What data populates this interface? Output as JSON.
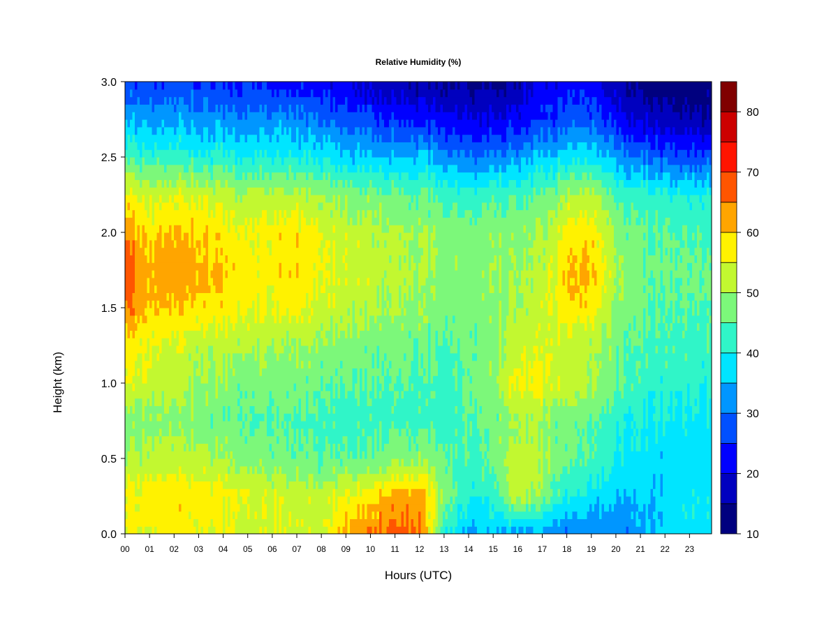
{
  "chart_data": {
    "type": "heatmap",
    "title": "Relative Humidity (%)",
    "xlabel": "Hours (UTC)",
    "ylabel": "Height (km)",
    "x_tick_labels": [
      "00",
      "01",
      "02",
      "03",
      "04",
      "05",
      "06",
      "07",
      "08",
      "09",
      "10",
      "11",
      "12",
      "13",
      "14",
      "15",
      "16",
      "17",
      "18",
      "19",
      "20",
      "21",
      "22",
      "23"
    ],
    "x_ticks": [
      0,
      1,
      2,
      3,
      4,
      5,
      6,
      7,
      8,
      9,
      10,
      11,
      12,
      13,
      14,
      15,
      16,
      17,
      18,
      19,
      20,
      21,
      22,
      23
    ],
    "xlim": [
      0,
      23.9
    ],
    "y_tick_labels": [
      "0.0",
      "0.5",
      "1.0",
      "1.5",
      "2.0",
      "2.5",
      "3.0"
    ],
    "y_ticks": [
      0,
      0.5,
      1.0,
      1.5,
      2.0,
      2.5,
      3.0
    ],
    "ylim": [
      0,
      3.0
    ],
    "colorbar": {
      "levels": [
        10,
        15,
        20,
        25,
        30,
        35,
        40,
        45,
        50,
        55,
        60,
        65,
        70,
        75,
        80,
        85
      ],
      "colors": [
        "#00007F",
        "#0000BF",
        "#0000FF",
        "#0050FF",
        "#0096FF",
        "#00E5FF",
        "#30F5C8",
        "#7CF87A",
        "#C2F830",
        "#FFF200",
        "#FFA500",
        "#FF5500",
        "#FF1400",
        "#CC0000",
        "#800000"
      ],
      "tick_labels": [
        "10",
        "20",
        "30",
        "40",
        "50",
        "60",
        "70",
        "80"
      ],
      "ticks": [
        10,
        20,
        30,
        40,
        50,
        60,
        70,
        80
      ]
    },
    "grid": false,
    "legend": "colorbar-right",
    "x": [
      0,
      1,
      2,
      3,
      4,
      5,
      6,
      7,
      8,
      9,
      10,
      11,
      12,
      13,
      14,
      15,
      16,
      17,
      18,
      19,
      20,
      21,
      22,
      23
    ],
    "y": [
      0.0,
      0.25,
      0.5,
      0.75,
      1.0,
      1.25,
      1.5,
      1.75,
      2.0,
      2.25,
      2.5,
      2.75,
      3.0
    ],
    "z": [
      [
        55,
        55,
        56,
        56,
        56,
        54,
        54,
        54,
        53,
        62,
        65,
        67,
        66,
        42,
        34,
        35,
        33,
        32,
        30,
        30,
        31,
        33,
        37,
        38
      ],
      [
        56,
        58,
        58,
        58,
        57,
        55,
        54,
        53,
        52,
        56,
        58,
        62,
        63,
        50,
        40,
        42,
        53,
        48,
        40,
        38,
        36,
        36,
        37,
        38
      ],
      [
        50,
        52,
        52,
        52,
        50,
        48,
        47,
        46,
        45,
        45,
        46,
        48,
        49,
        46,
        44,
        46,
        54,
        50,
        46,
        44,
        40,
        38,
        37,
        37
      ],
      [
        47,
        48,
        48,
        47,
        46,
        45,
        45,
        44,
        44,
        43,
        43,
        43,
        43,
        43,
        44,
        46,
        50,
        49,
        46,
        45,
        42,
        40,
        39,
        38
      ],
      [
        56,
        53,
        52,
        50,
        48,
        47,
        47,
        47,
        46,
        45,
        45,
        45,
        44,
        44,
        46,
        48,
        57,
        56,
        53,
        51,
        46,
        43,
        42,
        41
      ],
      [
        57,
        55,
        54,
        52,
        52,
        51,
        50,
        50,
        49,
        48,
        47,
        47,
        46,
        45,
        46,
        48,
        54,
        54,
        52,
        51,
        47,
        44,
        44,
        43
      ],
      [
        66,
        60,
        60,
        59,
        58,
        56,
        56,
        56,
        54,
        52,
        51,
        50,
        49,
        48,
        47,
        48,
        51,
        53,
        58,
        58,
        49,
        46,
        45,
        45
      ],
      [
        68,
        61,
        63,
        62,
        60,
        57,
        57,
        59,
        56,
        54,
        53,
        51,
        50,
        49,
        48,
        49,
        50,
        51,
        60,
        61,
        51,
        47,
        46,
        46
      ],
      [
        64,
        58,
        60,
        60,
        57,
        56,
        57,
        58,
        55,
        53,
        52,
        51,
        50,
        49,
        47,
        48,
        49,
        50,
        57,
        58,
        49,
        46,
        45,
        44
      ],
      [
        57,
        53,
        54,
        54,
        52,
        51,
        51,
        51,
        50,
        48,
        47,
        46,
        45,
        44,
        42,
        43,
        44,
        46,
        50,
        51,
        44,
        42,
        41,
        40
      ],
      [
        44,
        42,
        42,
        41,
        41,
        40,
        40,
        40,
        39,
        37,
        36,
        35,
        35,
        33,
        30,
        31,
        33,
        35,
        38,
        39,
        33,
        30,
        28,
        27
      ],
      [
        34,
        33,
        33,
        33,
        32,
        32,
        32,
        31,
        30,
        28,
        26,
        24,
        23,
        22,
        20,
        20,
        22,
        25,
        27,
        28,
        23,
        19,
        17,
        16
      ],
      [
        26,
        25,
        25,
        25,
        24,
        24,
        23,
        22,
        22,
        20,
        18,
        16,
        15,
        14,
        14,
        13,
        16,
        20,
        22,
        22,
        17,
        13,
        12,
        11
      ]
    ]
  }
}
